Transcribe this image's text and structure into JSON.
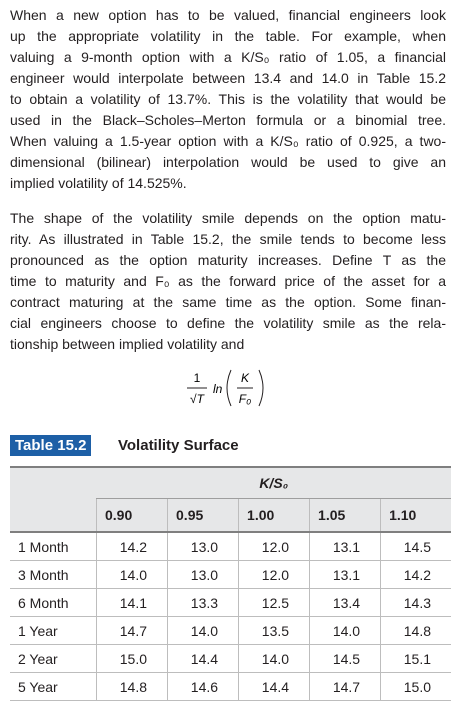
{
  "paragraphs": [
    [
      "When a new option has to be valued, financial engineers look",
      "up the appropriate volatility in the table. For example, when",
      "valuing a 9-month option with a K/S₀ ratio of 1.05, a financial",
      "engineer would interpolate between 13.4 and 14.0 in Table 15.2",
      "to obtain a volatility of 13.7%. This is the volatility that would be",
      "used in the Black–Scholes–Merton formula or a binomial tree.",
      "When valuing a 1.5-year option with a K/S₀ ratio of 0.925, a two-",
      "dimensional (bilinear) interpolation would be used to give an",
      "implied volatility of 14.525%."
    ],
    [
      "The shape of the volatility smile depends on the option matu-",
      "rity. As illustrated in Table 15.2, the smile tends to become less",
      "pronounced as the option maturity increases. Define T as the",
      "time to maturity and F₀ as the forward price of the asset for a",
      "contract maturing at the same time as the option. Some finan-",
      "cial engineers choose to define the volatility smile as the rela-",
      "tionship between implied volatility and"
    ]
  ],
  "formula": {
    "numerator": "1",
    "denominator": "√T",
    "function": "ln",
    "inner_numerator": "K",
    "inner_denominator": "F₀"
  },
  "table": {
    "label": "Table 15.2",
    "title": "Volatility Surface",
    "column_group": "K/S₀",
    "columns": [
      "0.90",
      "0.95",
      "1.00",
      "1.05",
      "1.10"
    ],
    "rows": [
      [
        "1 Month",
        "14.2",
        "13.0",
        "12.0",
        "13.1",
        "14.5"
      ],
      [
        "3 Month",
        "14.0",
        "13.0",
        "12.0",
        "13.1",
        "14.2"
      ],
      [
        "6 Month",
        "14.1",
        "13.3",
        "12.5",
        "13.4",
        "14.3"
      ],
      [
        "1 Year",
        "14.7",
        "14.0",
        "13.5",
        "14.0",
        "14.8"
      ],
      [
        "2 Year",
        "15.0",
        "14.4",
        "14.0",
        "14.5",
        "15.1"
      ],
      [
        "5 Year",
        "14.8",
        "14.6",
        "14.4",
        "14.7",
        "15.0"
      ]
    ]
  }
}
